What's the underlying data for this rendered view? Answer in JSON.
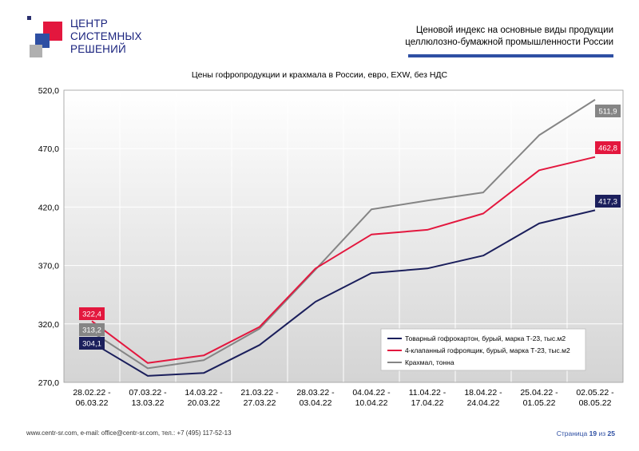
{
  "logo": {
    "lines": [
      "ЦЕНТР",
      "СИСТЕМНЫХ",
      "РЕШЕНИЙ"
    ]
  },
  "header": {
    "title_line1": "Ценовой индекс на основные виды продукции",
    "title_line2": "целлюлозно-бумажной промышленности России"
  },
  "footer": {
    "contacts": "www.centr-sr.com, e-mail: office@centr-sr.com, тел.: +7 (495) 117-52-13",
    "page_label": "Страница",
    "page_num": "19",
    "page_sep": "из",
    "page_total": "25"
  },
  "colors": {
    "navy": "#1b1f5c",
    "red": "#e3173e",
    "gray": "#858585",
    "accent": "#2e4fa3"
  },
  "chart_data": {
    "type": "line",
    "title": "Цены гофропродукции и крахмала в России, евро, EXW, без НДС",
    "xlabel": "",
    "ylabel": "",
    "ylim": [
      270,
      520
    ],
    "yticks": [
      "270,0",
      "320,0",
      "370,0",
      "420,0",
      "470,0",
      "520,0"
    ],
    "ytick_values": [
      270,
      320,
      370,
      420,
      470,
      520
    ],
    "categories": [
      [
        "28.02.22 -",
        "06.03.22"
      ],
      [
        "07.03.22 -",
        "13.03.22"
      ],
      [
        "14.03.22 -",
        "20.03.22"
      ],
      [
        "21.03.22 -",
        "27.03.22"
      ],
      [
        "28.03.22 -",
        "03.04.22"
      ],
      [
        "04.04.22 -",
        "10.04.22"
      ],
      [
        "11.04.22 -",
        "17.04.22"
      ],
      [
        "18.04.22 -",
        "24.04.22"
      ],
      [
        "25.04.22 -",
        "01.05.22"
      ],
      [
        "02.05.22 -",
        "08.05.22"
      ]
    ],
    "grid": true,
    "legend_position": "bottom-right",
    "series": [
      {
        "name": "Товарный гофрокартон, бурый, марка Т-23, тыс.м2",
        "color": "#1b1f5c",
        "values": [
          304.1,
          275.5,
          278.0,
          302.0,
          339.0,
          363.5,
          367.5,
          378.5,
          406.0,
          417.3
        ],
        "start_label": "304,1",
        "end_label": "417,3"
      },
      {
        "name": "4-клапанный гофроящик, бурый, марка Т-23, тыс.м2",
        "color": "#e3173e",
        "values": [
          322.4,
          286.5,
          293.0,
          317.5,
          367.5,
          396.5,
          400.5,
          414.5,
          451.5,
          462.8
        ],
        "start_label": "322,4",
        "end_label": "462,8"
      },
      {
        "name": "Крахмал, тонна",
        "color": "#858585",
        "values": [
          313.2,
          282.0,
          289.0,
          316.0,
          366.5,
          418.0,
          425.5,
          432.5,
          481.5,
          511.9
        ],
        "start_label": "313,2",
        "end_label": "511,9"
      }
    ]
  }
}
